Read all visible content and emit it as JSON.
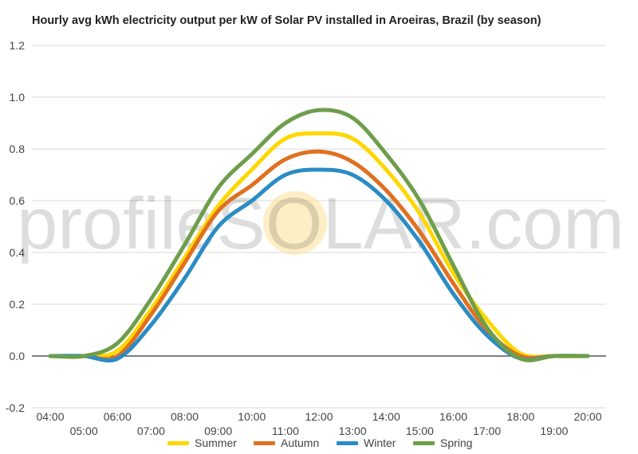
{
  "chart_data": {
    "type": "line",
    "title": "Hourly avg kWh electricity output per kW of Solar PV installed in Aroeiras, Brazil (by season)",
    "xlabel": "",
    "ylabel": "",
    "ylim": [
      -0.2,
      1.2
    ],
    "yticks": [
      "-0.2",
      "0.0",
      "0.2",
      "0.4",
      "0.6",
      "0.8",
      "1.0",
      "1.2"
    ],
    "ytick_values": [
      -0.2,
      0,
      0.2,
      0.4,
      0.6,
      0.8,
      1.0,
      1.2
    ],
    "categories": [
      "04:00",
      "05:00",
      "06:00",
      "07:00",
      "08:00",
      "09:00",
      "10:00",
      "11:00",
      "12:00",
      "13:00",
      "14:00",
      "15:00",
      "16:00",
      "17:00",
      "18:00",
      "19:00",
      "20:00"
    ],
    "grid": true,
    "legend_position": "bottom",
    "watermark": "profileSOLAR.com",
    "series": [
      {
        "name": "Summer",
        "color": "#FFD700",
        "values": [
          0,
          0,
          0.02,
          0.18,
          0.38,
          0.58,
          0.72,
          0.84,
          0.86,
          0.84,
          0.72,
          0.55,
          0.32,
          0.14,
          0.01,
          0,
          0
        ]
      },
      {
        "name": "Autumn",
        "color": "#E07020",
        "values": [
          0,
          0,
          0,
          0.16,
          0.36,
          0.56,
          0.66,
          0.76,
          0.79,
          0.75,
          0.64,
          0.48,
          0.28,
          0.1,
          0,
          0,
          0
        ]
      },
      {
        "name": "Winter",
        "color": "#2B8CC4",
        "values": [
          0,
          0,
          -0.01,
          0.12,
          0.3,
          0.5,
          0.6,
          0.7,
          0.72,
          0.7,
          0.6,
          0.44,
          0.24,
          0.08,
          -0.01,
          0,
          0
        ]
      },
      {
        "name": "Spring",
        "color": "#6E9E4C",
        "values": [
          0,
          0,
          0.05,
          0.22,
          0.43,
          0.65,
          0.78,
          0.9,
          0.95,
          0.92,
          0.78,
          0.6,
          0.35,
          0.11,
          -0.01,
          0,
          0
        ]
      }
    ]
  }
}
